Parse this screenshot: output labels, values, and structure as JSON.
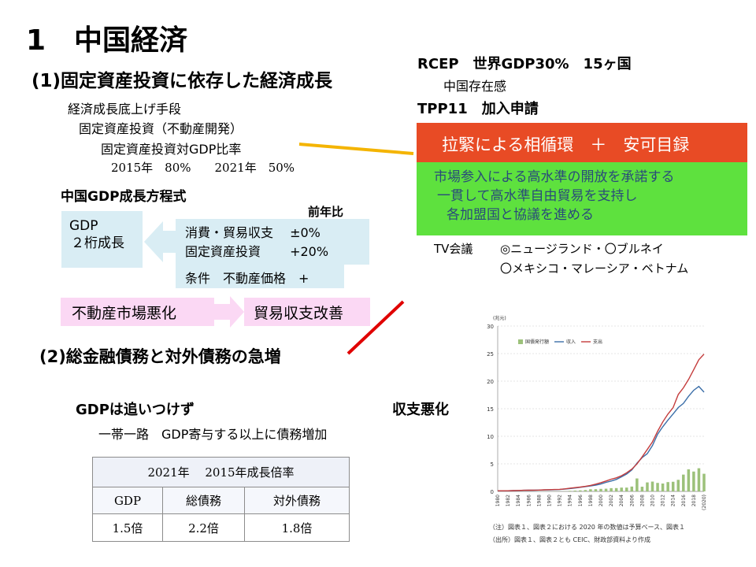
{
  "title": "1　中国経済",
  "section1": {
    "heading": "(1)固定資産投資に依存した経済成長",
    "items": [
      "経済成長底上げ手段",
      "固定資産投資（不動産開発）",
      "固定資産投資対GDP比率",
      "2015年　80%　　2021年　50%"
    ],
    "equation_title": "中国GDP成長方程式",
    "gdp_box": [
      "GDP",
      "２桁成長"
    ],
    "yoy_label": "前年比",
    "factor_rows": [
      "消費・貿易収支　 ±0%",
      "固定資産投資　 　+20%"
    ],
    "condition_row": "条件　不動産価格　+",
    "flow_from": "不動産市場悪化",
    "flow_to": "貿易収支改善"
  },
  "section2": {
    "heading": "(2)総金融債務と対外債務の急増",
    "gdp_lag": "GDPは追いつけず",
    "balance_worse": "収支悪化",
    "belt_road": "一帯一路　GDP寄与する以上に債務増加",
    "table": {
      "header": "2021年　 2015年成長倍率",
      "columns": [
        "GDP",
        "総債務",
        "対外債務"
      ],
      "values": [
        "1.5倍",
        "2.2倍",
        "1.8倍"
      ]
    }
  },
  "right": {
    "rcep": "RCEP　世界GDP30%　15ヶ国",
    "presence": "中国存在感",
    "tpp": "TPP11　加入申請",
    "banner_red": "拉緊による相循環　＋　安可目録",
    "banner_green": [
      "市場参入による高水準の開放を承諾する",
      "一貫して高水準自由貿易を支持し",
      "各加盟国と協議を進める"
    ],
    "tv_meeting_label": "TV会議",
    "tv_meeting_line1": "◎ニュージランド・〇ブルネイ",
    "tv_meeting_line2": "〇メキシコ・マレーシア・ベトナム"
  },
  "colors": {
    "pink": "#fbd8f4",
    "lightblue": "#d9edf4",
    "red_banner": "#e84b25",
    "green_banner": "#5ee13e",
    "orange_line": "#f4b400",
    "red_line": "#e00000",
    "bond": "#9cc17a",
    "revenue": "#3b6ea8",
    "expenditure": "#c43c3c"
  },
  "chart_data": {
    "type": "line",
    "unit_label": "(兆元)",
    "x": [
      1980,
      1981,
      1982,
      1983,
      1984,
      1985,
      1986,
      1987,
      1988,
      1989,
      1990,
      1991,
      1992,
      1993,
      1994,
      1995,
      1996,
      1997,
      1998,
      1999,
      2000,
      2001,
      2002,
      2003,
      2004,
      2005,
      2006,
      2007,
      2008,
      2009,
      2010,
      2011,
      2012,
      2013,
      2014,
      2015,
      2016,
      2017,
      2018,
      2019,
      2020
    ],
    "x_ticks": [
      "1980",
      "1982",
      "1984",
      "1986",
      "1988",
      "1990",
      "1992",
      "1994",
      "1996",
      "1998",
      "2000",
      "2002",
      "2004",
      "2006",
      "2008",
      "2010",
      "2012",
      "2014",
      "2016",
      "2018",
      "(2020)"
    ],
    "ylim": [
      0,
      30
    ],
    "y_ticks": [
      0,
      5,
      10,
      15,
      20,
      25,
      30
    ],
    "legend": [
      "国債発行額",
      "収入",
      "支出"
    ],
    "series": [
      {
        "name": "国債発行額",
        "kind": "bar",
        "values": [
          0,
          0.01,
          0.01,
          0.01,
          0.01,
          0.01,
          0.01,
          0.01,
          0.02,
          0.02,
          0.02,
          0.03,
          0.04,
          0.04,
          0.1,
          0.15,
          0.19,
          0.25,
          0.39,
          0.4,
          0.46,
          0.49,
          0.59,
          0.6,
          0.69,
          0.69,
          0.88,
          2.35,
          0.85,
          1.63,
          1.78,
          1.54,
          1.43,
          1.69,
          1.75,
          2.1,
          3.05,
          4.0,
          3.6,
          4.2,
          3.2
        ]
      },
      {
        "name": "収入",
        "kind": "line",
        "values": [
          0.11,
          0.12,
          0.12,
          0.14,
          0.16,
          0.2,
          0.21,
          0.22,
          0.24,
          0.27,
          0.29,
          0.31,
          0.35,
          0.43,
          0.52,
          0.62,
          0.74,
          0.87,
          0.99,
          1.14,
          1.34,
          1.64,
          1.89,
          2.17,
          2.64,
          3.16,
          3.88,
          5.13,
          6.13,
          6.85,
          8.31,
          10.39,
          11.73,
          12.92,
          14.04,
          15.22,
          15.96,
          17.26,
          18.34,
          19.04,
          18.0
        ]
      },
      {
        "name": "支出",
        "kind": "line",
        "values": [
          0.12,
          0.11,
          0.12,
          0.14,
          0.17,
          0.2,
          0.22,
          0.23,
          0.25,
          0.28,
          0.31,
          0.34,
          0.37,
          0.46,
          0.58,
          0.68,
          0.79,
          0.92,
          1.08,
          1.32,
          1.59,
          1.89,
          2.21,
          2.46,
          2.85,
          3.39,
          4.04,
          4.98,
          6.26,
          7.6,
          8.99,
          10.92,
          12.6,
          14.02,
          15.18,
          17.59,
          18.78,
          20.31,
          22.09,
          23.89,
          24.9
        ]
      }
    ],
    "notes": [
      "（注）図表１、図表２における 2020 年の数値は予算ベース、図表１",
      "（出所）図表１、図表２とも CEIC、財政部資料より作成"
    ]
  }
}
